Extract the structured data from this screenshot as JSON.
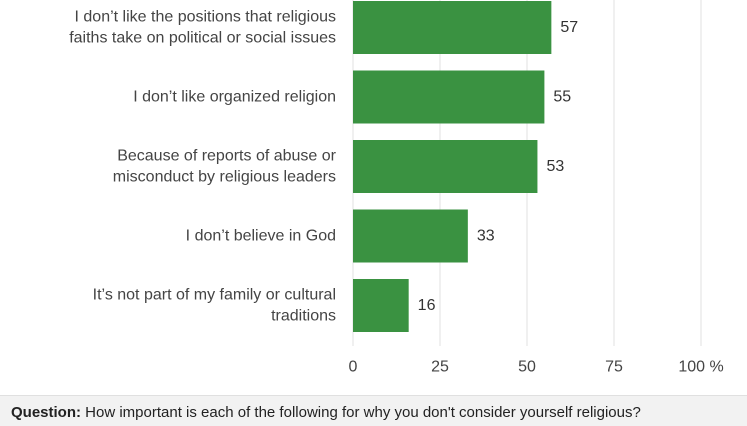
{
  "chart_data": {
    "type": "bar",
    "orientation": "horizontal",
    "categories": [
      [
        "I don’t like the positions that religious",
        "faiths take on political or social issues"
      ],
      [
        "I don’t like organized religion"
      ],
      [
        "Because of reports of abuse or",
        "misconduct by religious leaders"
      ],
      [
        "I don’t believe in God"
      ],
      [
        "It’s not part of my family or cultural",
        "traditions"
      ]
    ],
    "values": [
      57,
      55,
      53,
      33,
      16
    ],
    "xlim": [
      0,
      100
    ],
    "xticks": [
      "0",
      "25",
      "50",
      "75",
      "100 %"
    ],
    "xtick_values": [
      0,
      25,
      50,
      75,
      100
    ],
    "grid": "vertical",
    "bar_color": "#3a9241",
    "grid_color": "#e0e0e0"
  },
  "footer": {
    "question_label": "Question:",
    "question_text": "How important is each of the following for why you don't consider yourself religious?"
  }
}
